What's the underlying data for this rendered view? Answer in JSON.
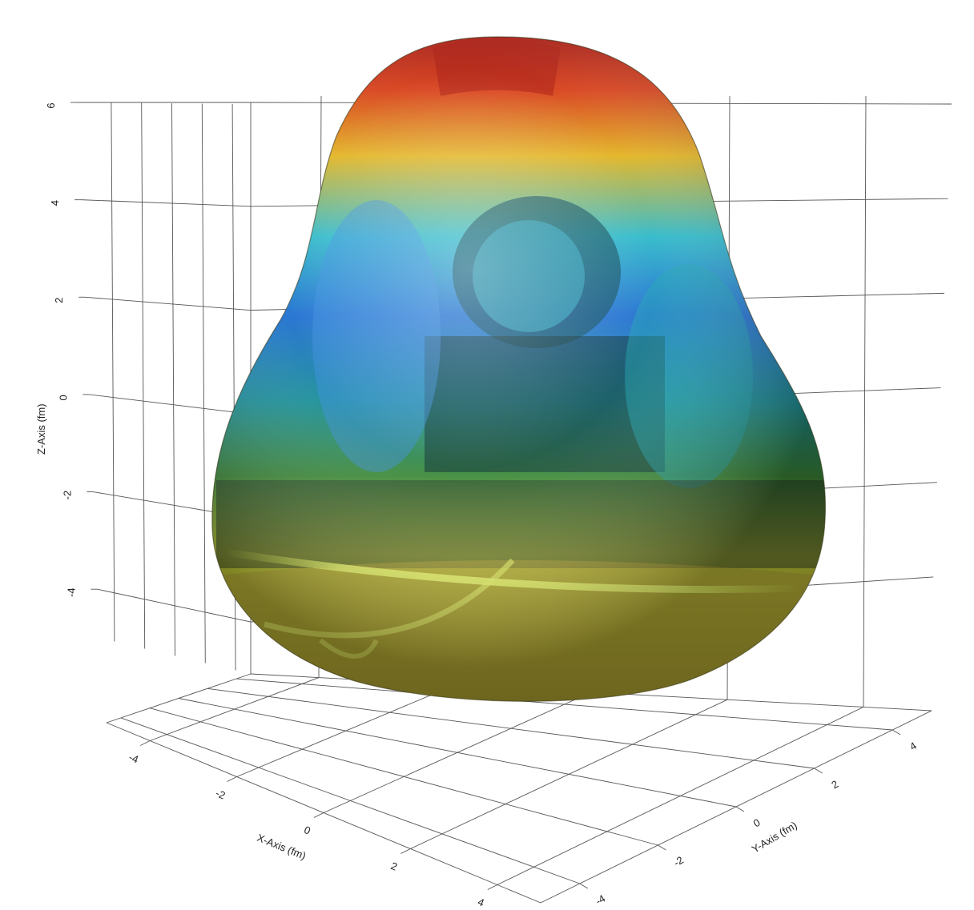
{
  "chart_data": {
    "type": "surface3d",
    "title": "",
    "xlabel": "X-Axis (fm)",
    "ylabel": "Y-Axis (fm)",
    "zlabel": "Z-Axis (fm)",
    "x_ticks": [
      "-4",
      "-2",
      "0",
      "2",
      "4"
    ],
    "y_ticks": [
      "-4",
      "-2",
      "0",
      "2",
      "4"
    ],
    "z_ticks": [
      "-4",
      "-2",
      "0",
      "2",
      "4",
      "6"
    ],
    "xlim": [
      -5,
      5
    ],
    "ylim": [
      -5,
      5
    ],
    "zlim": [
      -5,
      6
    ],
    "grid": true,
    "legend": "none",
    "surface": {
      "shape": "pear-shaped deformed nucleus surface (mirror-reflective)",
      "x_extent": [
        -4.5,
        4.5
      ],
      "y_extent": [
        -4.5,
        4.5
      ],
      "z_extent": [
        -4.5,
        6.7
      ],
      "colormap": [
        "#3a1f8a",
        "#1f6fd1",
        "#2fb9c9",
        "#5ccf86",
        "#c9d23a",
        "#e2b422",
        "#d8401a",
        "#a8180f"
      ]
    }
  }
}
